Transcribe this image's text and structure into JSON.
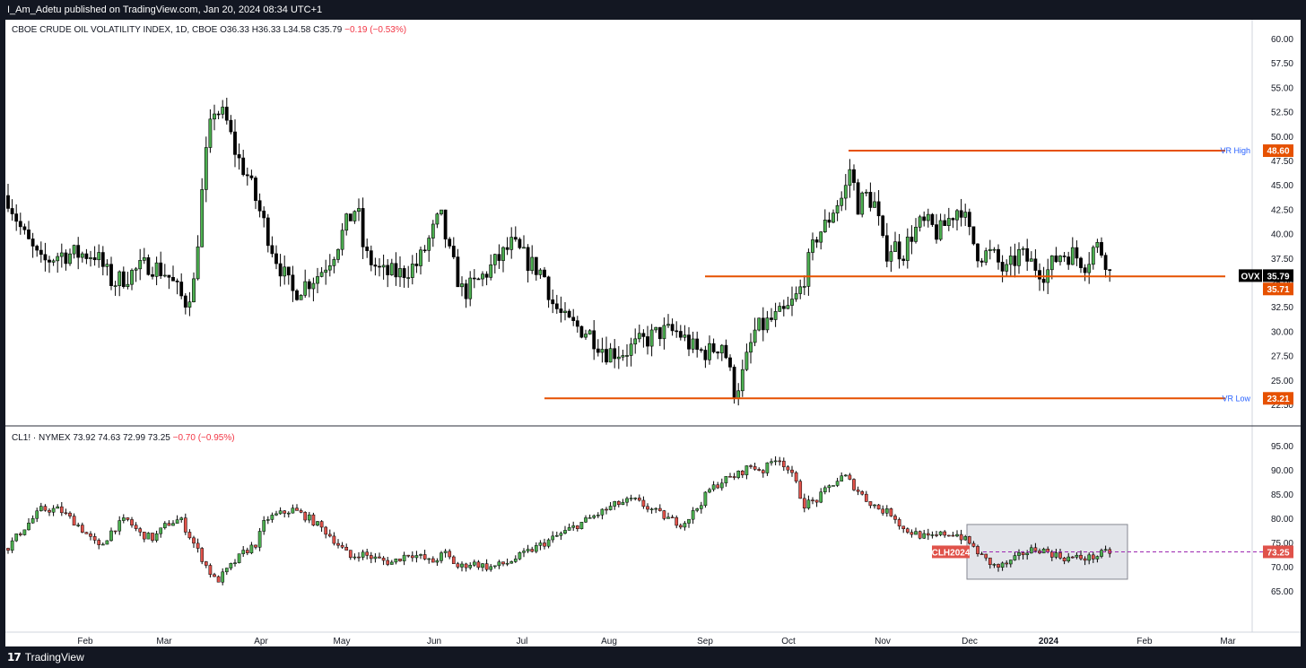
{
  "header": {
    "publish_text": "I_Am_Adetu published on TradingView.com, Jan 20, 2024 08:34 UTC+1"
  },
  "footer": {
    "brand": "TradingView"
  },
  "colors": {
    "up": "#4caf50",
    "down": "#000000",
    "line": "#e65100",
    "label_blue": "#2962ff",
    "ohlc_red": "#f23645"
  },
  "upper_pane": {
    "legend": {
      "symbol": "CBOE CRUDE OIL VOLATILITY INDEX, 1D, CBOE",
      "open": "O36.33",
      "high": "H36.33",
      "low": "L34.58",
      "close": "C35.79",
      "change": "−0.19 (−0.53%)"
    },
    "yaxis_ticks": [
      "60.00",
      "57.50",
      "55.00",
      "52.50",
      "50.00",
      "47.50",
      "45.00",
      "42.50",
      "40.00",
      "37.50",
      "35.00",
      "32.50",
      "30.00",
      "27.50",
      "25.00",
      "22.50"
    ],
    "lines": [
      {
        "name": "VR High",
        "label": "VR High",
        "value": 48.6,
        "value_label": "48.60"
      },
      {
        "name": "VR",
        "label": "VR",
        "value": 35.71,
        "value_label": "35.71"
      },
      {
        "name": "VR Low",
        "label": "VR Low",
        "value": 23.21,
        "value_label": "23.21"
      }
    ],
    "last_price": {
      "symbol": "OVX",
      "value": 35.79,
      "label": "35.79"
    }
  },
  "lower_pane": {
    "legend": {
      "symbol": "CL1! · NYMEX",
      "open": "73.92",
      "high": "74.63",
      "low": "72.99",
      "close": "73.25",
      "change": "−0.70 (−0.95%)"
    },
    "yaxis_ticks": [
      "95.00",
      "90.00",
      "85.00",
      "80.00",
      "75.00",
      "70.00",
      "65.00"
    ],
    "contract_label": "CLH2024",
    "last_price": {
      "value": 73.25,
      "label": "73.25"
    },
    "range_box": {
      "start": "Nov 30",
      "end": "Jan 19",
      "top": 78.9,
      "bottom": 67.6
    }
  },
  "xaxis_ticks": [
    "Feb",
    "Mar",
    "Apr",
    "May",
    "Jun",
    "Jul",
    "Aug",
    "Sep",
    "Oct",
    "Nov",
    "Dec",
    "2024",
    "Feb",
    "Mar"
  ],
  "chart_data": [
    {
      "type": "candlestick",
      "title": "CBOE CRUDE OIL VOLATILITY INDEX, 1D, CBOE",
      "ylim": [
        21.5,
        62.5
      ],
      "ylabel": "",
      "xlim": [
        "Jan 2023",
        "Mar 2024"
      ],
      "series": [
        {
          "x": [
            "Jan",
            "Feb",
            "Mar",
            "Mar",
            "Apr",
            "May",
            "Jun",
            "Jul",
            "Aug",
            "Sep",
            "Sep",
            "Oct",
            "Oct",
            "Nov",
            "Dec",
            "Jan"
          ],
          "close": [
            43.0,
            36.0,
            33.0,
            53.0,
            37.0,
            40.0,
            37.0,
            33.0,
            28.0,
            26.0,
            24.0,
            42.0,
            48.0,
            41.0,
            37.0,
            35.79
          ]
        }
      ],
      "annotations": [
        {
          "text": "VR High",
          "value": 48.6
        },
        {
          "text": "VR",
          "value": 35.71
        },
        {
          "text": "VR Low",
          "value": 23.21
        }
      ]
    },
    {
      "type": "candlestick",
      "title": "CL1! · NYMEX",
      "ylim": [
        62.5,
        97.5
      ],
      "ylabel": "",
      "series": [
        {
          "x": [
            "Jan",
            "Feb",
            "Mar",
            "Mar",
            "Apr",
            "May",
            "Jun",
            "Jul",
            "Aug",
            "Sep",
            "Oct",
            "Nov",
            "Dec",
            "Jan"
          ],
          "close": [
            75.0,
            80.0,
            68.0,
            70.0,
            83.0,
            68.0,
            71.0,
            72.0,
            82.0,
            89.0,
            92.0,
            82.0,
            72.0,
            73.25
          ]
        }
      ],
      "annotations": [
        {
          "text": "CLH2024",
          "value": 73.25
        }
      ]
    }
  ]
}
